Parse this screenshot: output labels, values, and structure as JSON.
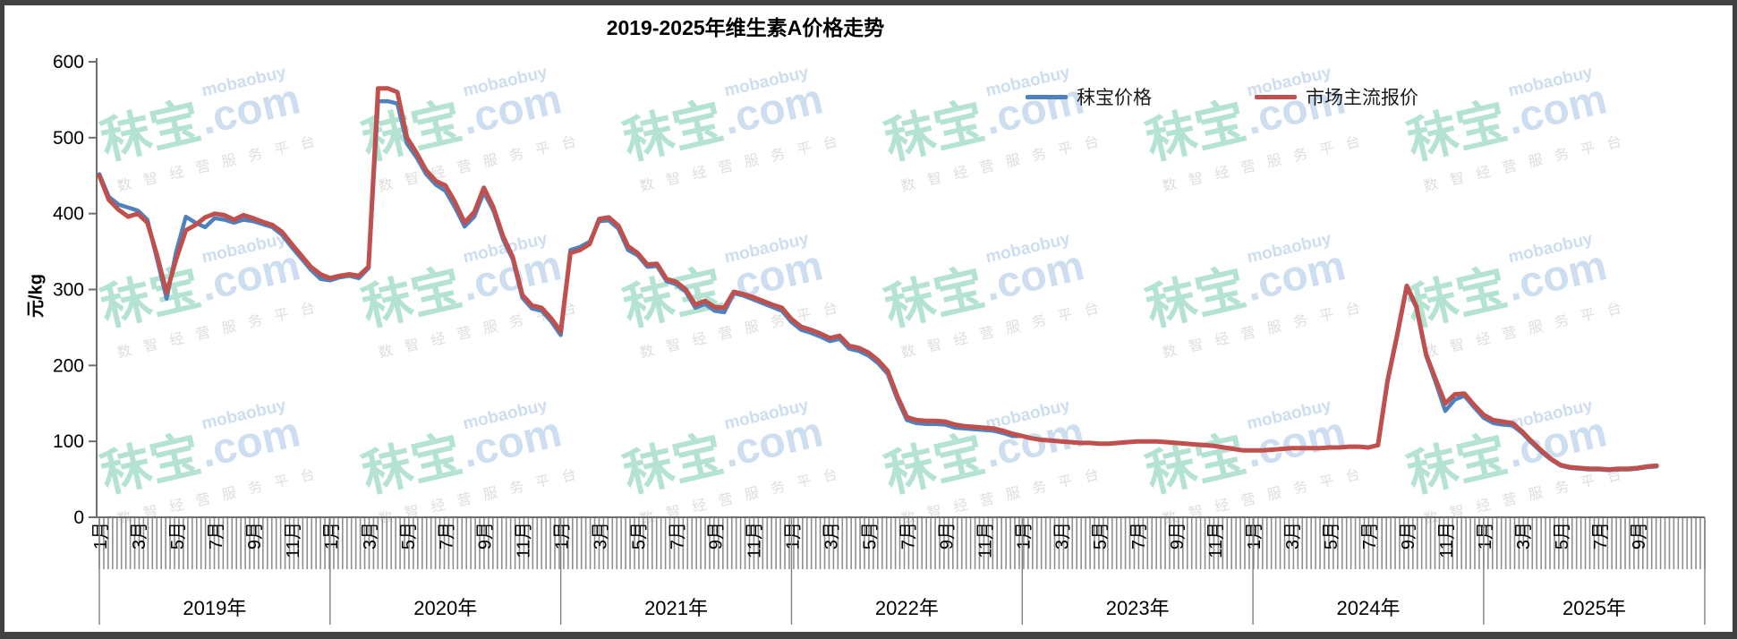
{
  "title": "2019-2025年维生素A价格走势",
  "legend": {
    "items": [
      {
        "label": "秣宝价格",
        "color": "#4F81BD"
      },
      {
        "label": "市场主流报价",
        "color": "#C0504D"
      }
    ]
  },
  "y_axis": {
    "title": "元/kg",
    "tick_labels": [
      "0",
      "100",
      "200",
      "300",
      "400",
      "500",
      "600"
    ]
  },
  "x_axis": {
    "years": [
      {
        "label": "2019年",
        "months": [
          "1月",
          "3月",
          "5月",
          "7月",
          "9月",
          "11月"
        ]
      },
      {
        "label": "2020年",
        "months": [
          "1月",
          "3月",
          "5月",
          "7月",
          "9月",
          "11月"
        ]
      },
      {
        "label": "2021年",
        "months": [
          "1月",
          "3月",
          "5月",
          "7月",
          "9月",
          "11月"
        ]
      },
      {
        "label": "2022年",
        "months": [
          "1月",
          "3月",
          "5月",
          "7月",
          "9月",
          "11月"
        ]
      },
      {
        "label": "2023年",
        "months": [
          "1月",
          "3月",
          "5月",
          "7月",
          "9月",
          "11月"
        ]
      },
      {
        "label": "2024年",
        "months": [
          "1月",
          "3月",
          "5月",
          "7月",
          "9月",
          "11月"
        ]
      },
      {
        "label": "2025年",
        "months": [
          "1月",
          "3月",
          "5月",
          "7月",
          "9月"
        ]
      }
    ]
  },
  "watermark": {
    "brand": "秣宝",
    "domain": ".com",
    "latin": "mobaobuy",
    "tagline": "数智经营服务平台",
    "brand_color": "#B4E3D2",
    "domain_color": "#CCDEF0",
    "tagline_color": "#DEDEDE"
  },
  "frame": {
    "border_color": "#414141"
  },
  "chart_data": {
    "type": "line",
    "title": "2019-2025年维生素A价格走势",
    "xlabel": "",
    "ylabel": "元/kg",
    "ylim": [
      0,
      600
    ],
    "y_ticks": [
      0,
      100,
      200,
      300,
      400,
      500,
      600
    ],
    "x_unit": "half_month",
    "x_start": "2019-01",
    "x_end": "2025-10",
    "x_axis_total_half_months": 167,
    "grid": false,
    "legend_position": "top-right",
    "series": [
      {
        "name": "秣宝价格",
        "color": "#4F81BD",
        "width": 4.5,
        "values": [
          452,
          422,
          412,
          408,
          404,
          392,
          340,
          288,
          350,
          396,
          388,
          382,
          394,
          392,
          388,
          392,
          390,
          386,
          382,
          372,
          356,
          341,
          326,
          314,
          312,
          316,
          318,
          315,
          328,
          548,
          548,
          545,
          492,
          474,
          452,
          438,
          430,
          408,
          383,
          396,
          428,
          404,
          366,
          340,
          289,
          275,
          272,
          258,
          240,
          352,
          356,
          363,
          390,
          391,
          380,
          352,
          345,
          330,
          331,
          311,
          307,
          297,
          276,
          281,
          272,
          270,
          295,
          292,
          287,
          282,
          277,
          272,
          257,
          247,
          243,
          238,
          232,
          235,
          222,
          219,
          213,
          203,
          189,
          156,
          128,
          124,
          123,
          123,
          122,
          118,
          117,
          116,
          115,
          114,
          111,
          107,
          107,
          104,
          102,
          101,
          100,
          99,
          98,
          98,
          97,
          97,
          98,
          99,
          100,
          100,
          100,
          99,
          98,
          97,
          96,
          95,
          94,
          92,
          90,
          88,
          88,
          88,
          89,
          90,
          91,
          91,
          91,
          91,
          92,
          92,
          93,
          93,
          92,
          95,
          178,
          238,
          303,
          276,
          213,
          178,
          140,
          155,
          160,
          145,
          131,
          124,
          122,
          121,
          111,
          98,
          86,
          76,
          68,
          65,
          64,
          63,
          63,
          62,
          63,
          63,
          64,
          66,
          67
        ]
      },
      {
        "name": "市场主流报价",
        "color": "#C0504D",
        "width": 5,
        "values": [
          450,
          418,
          405,
          396,
          400,
          388,
          345,
          296,
          340,
          378,
          385,
          395,
          400,
          398,
          392,
          398,
          394,
          389,
          385,
          376,
          360,
          345,
          330,
          320,
          315,
          318,
          320,
          318,
          330,
          565,
          565,
          560,
          500,
          480,
          457,
          443,
          437,
          415,
          388,
          402,
          434,
          408,
          370,
          343,
          293,
          279,
          276,
          262,
          245,
          348,
          352,
          360,
          393,
          395,
          384,
          357,
          348,
          333,
          334,
          314,
          310,
          300,
          280,
          285,
          277,
          276,
          297,
          294,
          290,
          285,
          280,
          276,
          261,
          251,
          247,
          242,
          236,
          239,
          226,
          223,
          217,
          207,
          193,
          160,
          132,
          128,
          127,
          127,
          126,
          122,
          120,
          119,
          118,
          117,
          114,
          110,
          107,
          104,
          102,
          101,
          100,
          99,
          98,
          98,
          97,
          97,
          98,
          99,
          100,
          100,
          100,
          99,
          98,
          97,
          96,
          95,
          94,
          92,
          90,
          88,
          88,
          88,
          89,
          90,
          91,
          91,
          91,
          91,
          92,
          92,
          93,
          93,
          92,
          95,
          180,
          240,
          305,
          278,
          215,
          182,
          150,
          162,
          163,
          148,
          135,
          128,
          126,
          124,
          113,
          100,
          88,
          77,
          69,
          66,
          65,
          64,
          64,
          63,
          64,
          64,
          65,
          67,
          68
        ]
      }
    ]
  }
}
